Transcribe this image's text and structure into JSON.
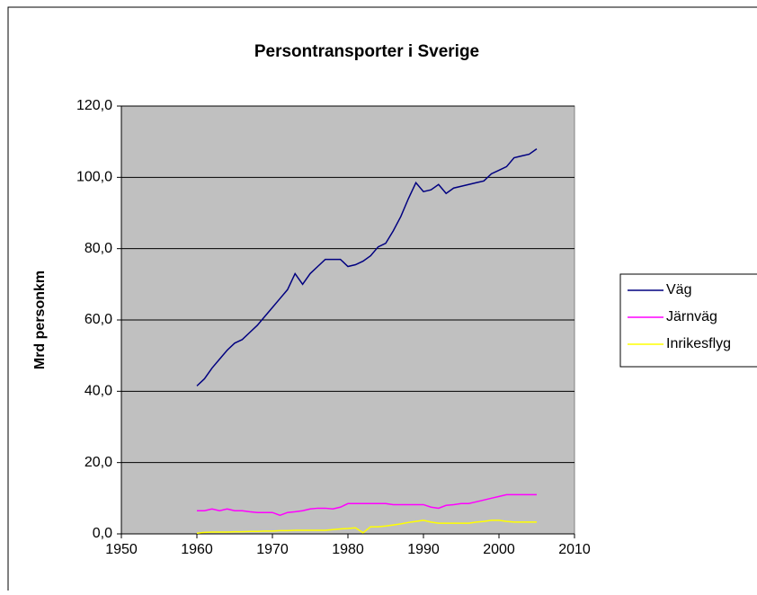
{
  "chart_data": {
    "type": "line",
    "title": "Persontransporter i Sverige",
    "y_label": "Mrd personkm",
    "x": [
      1960,
      1961,
      1962,
      1963,
      1964,
      1965,
      1966,
      1967,
      1968,
      1969,
      1970,
      1971,
      1972,
      1973,
      1974,
      1975,
      1976,
      1977,
      1978,
      1979,
      1980,
      1981,
      1982,
      1983,
      1984,
      1985,
      1986,
      1987,
      1988,
      1989,
      1990,
      1991,
      1992,
      1993,
      1994,
      1995,
      1996,
      1997,
      1998,
      1999,
      2000,
      2001,
      2002,
      2003,
      2004,
      2005
    ],
    "series": [
      {
        "name": "Väg",
        "color": "#000080",
        "values": [
          41.5,
          43.5,
          46.5,
          49,
          51.5,
          53.5,
          54.5,
          56.5,
          58.5,
          61,
          63.5,
          66,
          68.5,
          73,
          70,
          73,
          75,
          77,
          77,
          77,
          75,
          75.5,
          76.5,
          78,
          80.5,
          81.5,
          85,
          89,
          94,
          98.5,
          96,
          96.5,
          98,
          95.5,
          97,
          97.5,
          98,
          98.5,
          99,
          101,
          102,
          103,
          105.5,
          106,
          106.5,
          108
        ]
      },
      {
        "name": "Järnväg",
        "color": "#ff00ff",
        "values": [
          6.5,
          6.5,
          7,
          6.5,
          7,
          6.5,
          6.5,
          6.2,
          6,
          6,
          6,
          5.2,
          6,
          6.2,
          6.5,
          7,
          7.2,
          7.2,
          7,
          7.5,
          8.5,
          8.5,
          8.5,
          8.5,
          8.5,
          8.5,
          8.2,
          8.2,
          8.2,
          8.2,
          8.2,
          7.5,
          7.2,
          8,
          8.2,
          8.5,
          8.5,
          9,
          9.5,
          10,
          10.5,
          11,
          11,
          11,
          11,
          11
        ]
      },
      {
        "name": "Inrikesflyg",
        "color": "#ffff00",
        "values": [
          0.2,
          0.4,
          0.5,
          0.5,
          0.5,
          0.6,
          0.6,
          0.7,
          0.7,
          0.8,
          0.8,
          0.9,
          0.9,
          1,
          1,
          1,
          1,
          1,
          1.2,
          1.4,
          1.5,
          1.7,
          0.3,
          2,
          2,
          2.2,
          2.5,
          2.8,
          3.2,
          3.5,
          3.8,
          3.3,
          3,
          3,
          3,
          3,
          3,
          3.3,
          3.5,
          3.8,
          3.8,
          3.5,
          3.3,
          3.3,
          3.3,
          3.3
        ]
      }
    ],
    "xlim": [
      1950,
      2010
    ],
    "xticks": [
      1950,
      1960,
      1970,
      1980,
      1990,
      2000,
      2010
    ],
    "ylim": [
      0,
      120
    ],
    "yticks": [
      {
        "value": 0,
        "label": "0,0"
      },
      {
        "value": 20,
        "label": "20,0"
      },
      {
        "value": 40,
        "label": "40,0"
      },
      {
        "value": 60,
        "label": "60,0"
      },
      {
        "value": 80,
        "label": "80,0"
      },
      {
        "value": 100,
        "label": "100,0"
      },
      {
        "value": 120,
        "label": "120,0"
      }
    ],
    "grid": true,
    "legend": "right"
  }
}
